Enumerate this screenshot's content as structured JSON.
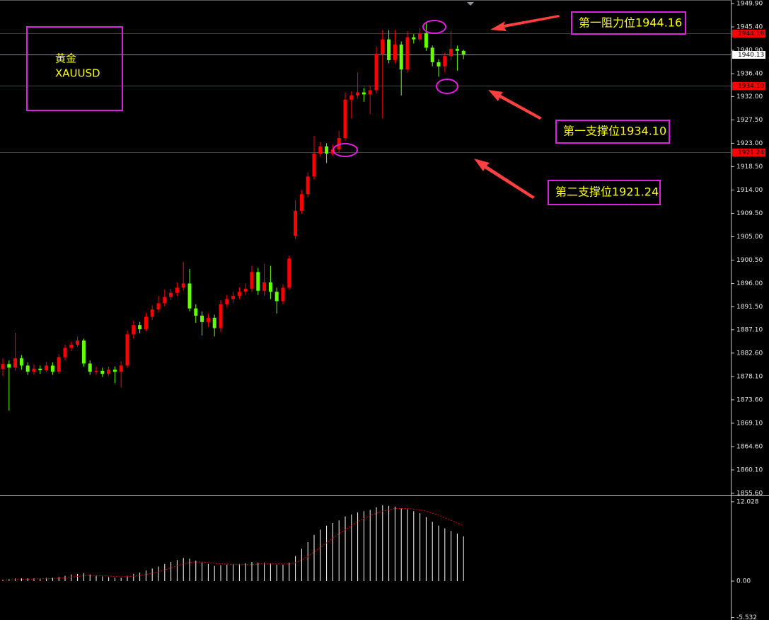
{
  "chart_data": [
    {
      "type": "candlestick",
      "title": "黄金",
      "subtitle": "XAUUSD",
      "up_color": "#ff0000",
      "down_color": "#66ff00",
      "open": [
        1879.6,
        1880.5,
        1879.8,
        1881.6,
        1880.2,
        1879.0,
        1879.6,
        1879.3,
        1880.2,
        1879.0,
        1881.8,
        1883.6,
        1884.2,
        1885.0,
        1880.6,
        1879.0,
        1879.2,
        1878.6,
        1879.4,
        1879.0,
        1880.2,
        1886.2,
        1888.0,
        1887.2,
        1889.6,
        1891.0,
        1892.2,
        1893.4,
        1894.2,
        1895.2,
        1896.0,
        1891.2,
        1889.8,
        1888.6,
        1889.4,
        1887.4,
        1892.0,
        1893.0,
        1893.6,
        1894.4,
        1895.0,
        1898.2,
        1894.6,
        1896.2,
        1894.4,
        1892.6,
        1895.2,
        1905.2,
        1910.0,
        1913.2,
        1916.6,
        1921.0,
        1922.4,
        1921.0,
        1921.8,
        1924.0,
        1931.4,
        1932.2,
        1932.8,
        1932.4,
        1933.2,
        1940.2,
        1943.0,
        1939.0,
        1942.0,
        1937.2,
        1943.4,
        1943.0,
        1944.2,
        1941.4,
        1938.6,
        1937.8,
        1939.8,
        1941.2,
        1940.8
      ],
      "high": [
        1881.6,
        1881.2,
        1886.5,
        1882.2,
        1880.8,
        1880.4,
        1880.2,
        1880.9,
        1880.8,
        1882.4,
        1884.2,
        1884.8,
        1885.8,
        1885.4,
        1881.2,
        1880.0,
        1879.8,
        1880.0,
        1880.0,
        1881.0,
        1887.0,
        1888.8,
        1888.6,
        1890.4,
        1891.8,
        1893.6,
        1894.8,
        1895.0,
        1896.2,
        1900.2,
        1898.8,
        1892.0,
        1890.6,
        1890.2,
        1890.0,
        1892.8,
        1893.8,
        1894.4,
        1895.2,
        1896.0,
        1899.4,
        1899.0,
        1899.8,
        1899.4,
        1895.2,
        1895.8,
        1901.4,
        1912.0,
        1914.0,
        1917.4,
        1924.4,
        1923.2,
        1923.0,
        1922.8,
        1925.4,
        1932.8,
        1933.0,
        1936.6,
        1933.6,
        1934.0,
        1941.6,
        1944.8,
        1944.8,
        1944.8,
        1942.6,
        1944.6,
        1944.0,
        1945.2,
        1946.2,
        1941.8,
        1939.2,
        1940.4,
        1944.6,
        1941.8,
        1941.0
      ],
      "low": [
        1878.2,
        1871.5,
        1879.2,
        1879.4,
        1878.4,
        1878.4,
        1878.6,
        1878.9,
        1878.4,
        1878.6,
        1881.2,
        1883.0,
        1883.8,
        1880.0,
        1878.4,
        1878.4,
        1878.0,
        1878.2,
        1876.8,
        1876.0,
        1879.8,
        1885.4,
        1886.4,
        1886.8,
        1889.0,
        1890.4,
        1891.6,
        1892.8,
        1893.6,
        1894.6,
        1890.6,
        1888.4,
        1886.0,
        1887.6,
        1885.8,
        1886.6,
        1891.4,
        1892.2,
        1893.0,
        1893.8,
        1894.4,
        1893.8,
        1893.6,
        1893.0,
        1890.2,
        1892.0,
        1894.8,
        1904.6,
        1909.4,
        1912.6,
        1916.0,
        1920.4,
        1919.2,
        1920.6,
        1921.2,
        1923.4,
        1927.8,
        1931.6,
        1931.0,
        1928.6,
        1932.6,
        1927.8,
        1938.4,
        1938.4,
        1932.2,
        1936.6,
        1942.2,
        1942.6,
        1940.8,
        1937.8,
        1935.8,
        1936.6,
        1939.0,
        1937.0,
        1939.2
      ],
      "close": [
        1880.5,
        1879.8,
        1881.6,
        1880.2,
        1879.0,
        1879.6,
        1879.3,
        1880.2,
        1879.0,
        1881.8,
        1883.6,
        1884.2,
        1885.0,
        1880.6,
        1879.0,
        1879.2,
        1878.6,
        1879.4,
        1879.0,
        1880.2,
        1886.2,
        1888.0,
        1887.2,
        1889.6,
        1891.0,
        1892.2,
        1893.4,
        1894.2,
        1895.2,
        1896.0,
        1891.2,
        1889.8,
        1888.6,
        1889.4,
        1887.4,
        1892.0,
        1893.0,
        1893.6,
        1894.4,
        1895.0,
        1898.2,
        1894.6,
        1896.2,
        1894.4,
        1892.6,
        1895.2,
        1900.8,
        1910.0,
        1913.2,
        1916.6,
        1921.0,
        1922.4,
        1921.0,
        1921.8,
        1924.0,
        1931.4,
        1932.2,
        1932.8,
        1932.4,
        1933.2,
        1940.2,
        1943.0,
        1939.0,
        1942.0,
        1937.2,
        1943.4,
        1943.0,
        1944.2,
        1941.4,
        1938.6,
        1937.8,
        1939.8,
        1941.2,
        1940.8,
        1940.13
      ],
      "ylim": [
        1855.6,
        1949.9
      ],
      "yticks": [
        {
          "value": 1949.9,
          "label": "1949.90"
        },
        {
          "value": 1945.4,
          "label": "1945.40"
        },
        {
          "value": 1940.9,
          "label": "1940.90"
        },
        {
          "value": 1936.4,
          "label": "1936.40"
        },
        {
          "value": 1932.0,
          "label": "1932.00"
        },
        {
          "value": 1927.5,
          "label": "1927.50"
        },
        {
          "value": 1923.0,
          "label": "1923.00"
        },
        {
          "value": 1918.5,
          "label": "1918.50"
        },
        {
          "value": 1914.0,
          "label": "1914.00"
        },
        {
          "value": 1909.5,
          "label": "1909.50"
        },
        {
          "value": 1905.0,
          "label": "1905.00"
        },
        {
          "value": 1900.5,
          "label": "1900.50"
        },
        {
          "value": 1896.0,
          "label": "1896.00"
        },
        {
          "value": 1891.5,
          "label": "1891.50"
        },
        {
          "value": 1887.1,
          "label": "1887.10"
        },
        {
          "value": 1882.6,
          "label": "1882.60"
        },
        {
          "value": 1878.1,
          "label": "1878.10"
        },
        {
          "value": 1873.6,
          "label": "1873.60"
        },
        {
          "value": 1869.1,
          "label": "1869.10"
        },
        {
          "value": 1864.6,
          "label": "1864.60"
        },
        {
          "value": 1860.1,
          "label": "1860.10"
        },
        {
          "value": 1855.6,
          "label": "1855.60"
        }
      ],
      "levels": [
        {
          "value": 1944.16,
          "label": "1944.16",
          "color": "#d40000",
          "tag": "#ff0000"
        },
        {
          "value": 1940.13,
          "label": "1940.13",
          "color": "#8a8f99",
          "tag": "#ffffff"
        },
        {
          "value": 1934.1,
          "label": "1934.10",
          "color": "#d40000",
          "tag": "#ff0000"
        },
        {
          "value": 1921.24,
          "label": "1921.24",
          "color": "#d40000",
          "tag": "#ff0000"
        }
      ],
      "annotations": [
        "第一阻力位1944.16",
        "第一支撑位1934.10",
        "第二支撑位1921.24"
      ]
    },
    {
      "type": "macd",
      "histogram_color": "#ffffff",
      "signal_color": "#e00000",
      "histogram": [
        0.2,
        0.3,
        0.4,
        0.4,
        0.4,
        0.4,
        0.4,
        0.5,
        0.5,
        0.6,
        0.8,
        1.0,
        1.1,
        1.2,
        1.0,
        0.8,
        0.7,
        0.6,
        0.5,
        0.5,
        0.8,
        1.1,
        1.3,
        1.6,
        1.9,
        2.2,
        2.6,
        2.9,
        3.2,
        3.5,
        3.4,
        3.1,
        2.8,
        2.6,
        2.3,
        2.4,
        2.5,
        2.6,
        2.6,
        2.7,
        2.9,
        2.8,
        2.8,
        2.7,
        2.5,
        2.5,
        2.8,
        3.8,
        4.9,
        5.9,
        7.0,
        7.8,
        8.4,
        8.8,
        9.2,
        9.8,
        10.1,
        10.4,
        10.6,
        10.8,
        11.2,
        11.5,
        11.4,
        11.3,
        11.0,
        10.9,
        10.6,
        10.3,
        9.7,
        9.0,
        8.4,
        8.0,
        7.6,
        7.2,
        6.8
      ],
      "signal": [
        0.1,
        0.15,
        0.2,
        0.25,
        0.3,
        0.3,
        0.35,
        0.35,
        0.4,
        0.45,
        0.5,
        0.6,
        0.7,
        0.8,
        0.85,
        0.85,
        0.8,
        0.75,
        0.7,
        0.65,
        0.7,
        0.75,
        0.85,
        1.0,
        1.2,
        1.4,
        1.7,
        2.0,
        2.3,
        2.6,
        2.8,
        2.9,
        2.9,
        2.8,
        2.7,
        2.6,
        2.6,
        2.5,
        2.5,
        2.5,
        2.5,
        2.6,
        2.6,
        2.6,
        2.6,
        2.6,
        2.6,
        2.8,
        3.2,
        3.7,
        4.4,
        5.1,
        5.8,
        6.5,
        7.2,
        7.8,
        8.4,
        9.0,
        9.5,
        9.9,
        10.3,
        10.6,
        10.8,
        11.0,
        11.0,
        11.0,
        10.9,
        10.8,
        10.6,
        10.3,
        10.0,
        9.6,
        9.2,
        8.8,
        8.4
      ],
      "ylim": [
        -5.9,
        12.45
      ],
      "yticks": [
        12.028,
        {
          "value": 0,
          "label": "0.00"
        },
        -5.532
      ]
    }
  ]
}
